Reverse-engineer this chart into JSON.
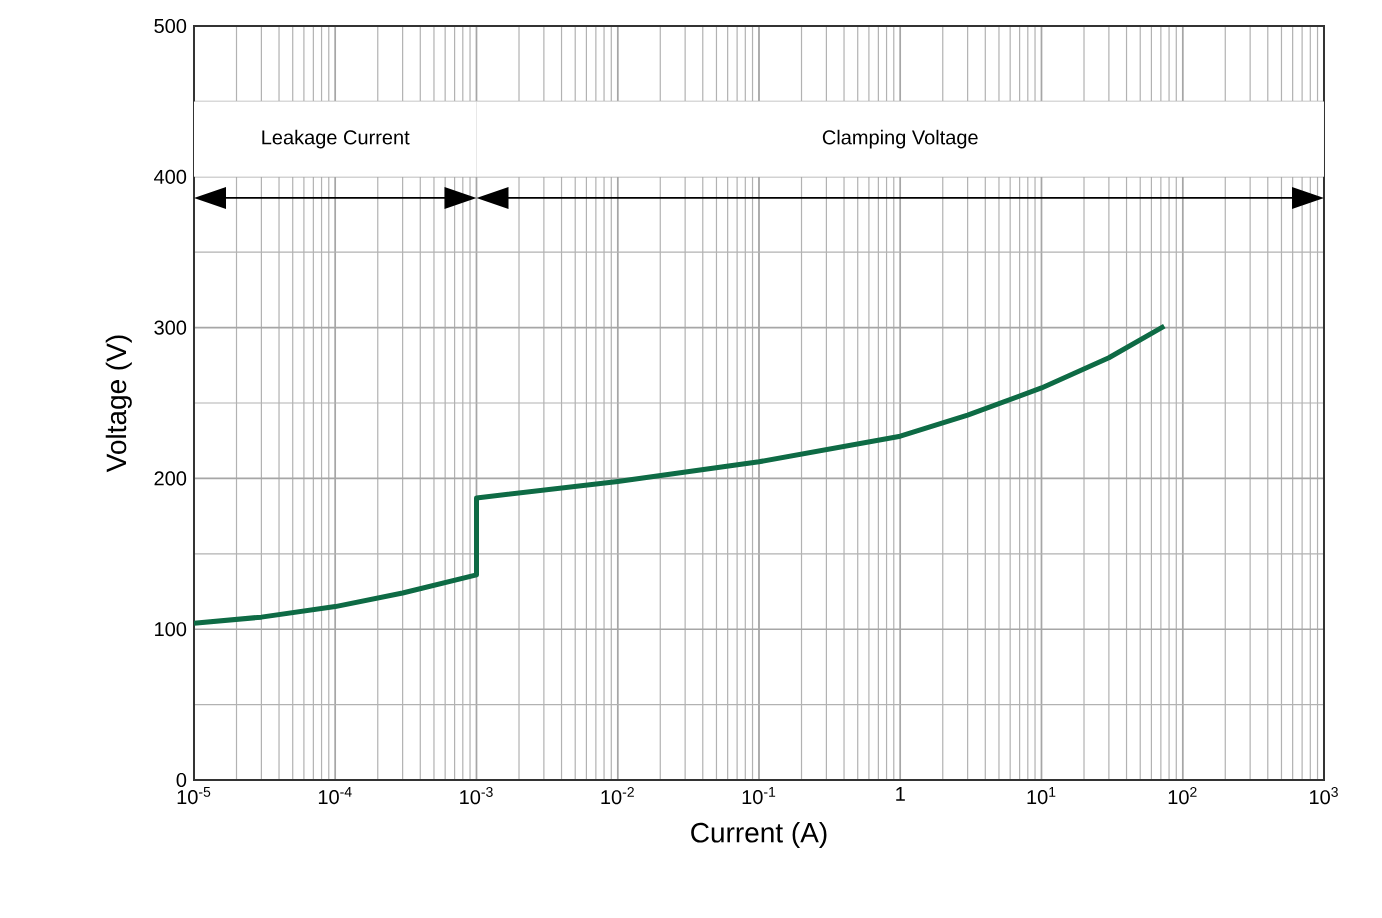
{
  "chart_data": {
    "type": "line",
    "xlabel": "Current (A)",
    "ylabel": "Voltage (V)",
    "log": "x",
    "grid": true,
    "marker": "none",
    "line_style": "solid",
    "xlim": [
      1e-05,
      1000
    ],
    "ylim": [
      0,
      500
    ],
    "xticks": [
      {
        "value": 1e-05,
        "label": "10$^{-5}$"
      },
      {
        "value": 0.0001,
        "label": "10$^{-4}$"
      },
      {
        "value": 0.001,
        "label": "10$^{-3}$"
      },
      {
        "value": 0.01,
        "label": "10$^{-2}$"
      },
      {
        "value": 0.1,
        "label": "10$^{-1}$"
      },
      {
        "value": 1,
        "label": "1"
      },
      {
        "value": 10,
        "label": "10$^{1}$"
      },
      {
        "value": 100,
        "label": "10$^{2}$"
      },
      {
        "value": 1000,
        "label": "10$^{3}$"
      }
    ],
    "yticks": [
      0,
      100,
      200,
      300,
      400,
      500
    ],
    "series": [
      {
        "color": "#0e6b45",
        "x": [
          1e-05,
          3e-05,
          0.0001,
          0.0003,
          0.001,
          0.001,
          0.01,
          0.1,
          1,
          3,
          10,
          30,
          74
        ],
        "values": [
          104,
          108,
          115,
          124,
          136,
          187,
          198,
          211,
          228,
          242,
          260,
          280,
          301
        ]
      }
    ],
    "bands": [
      {
        "axis": "x",
        "from": 1e-05,
        "to": 0.001,
        "label": "Leakage Current",
        "color": "#ffffff"
      },
      {
        "axis": "x",
        "from": 0.001,
        "to": 1000,
        "label": "Clamping Voltage",
        "color": "#ffffff"
      }
    ]
  }
}
